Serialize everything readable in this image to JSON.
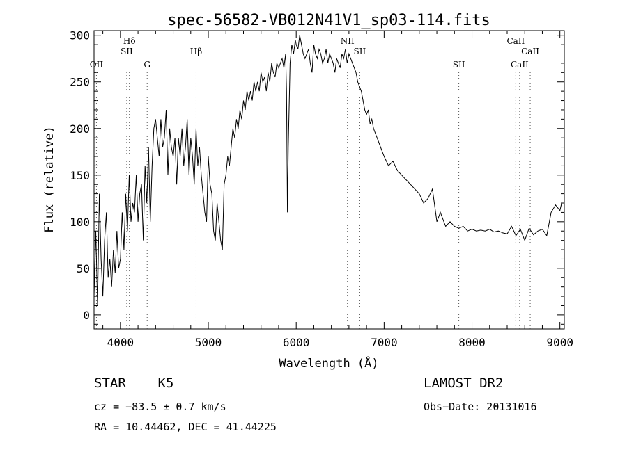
{
  "chart_data": {
    "type": "line",
    "title": "spec-56582-VB012N41V1_sp03-114.fits",
    "xlabel": "Wavelength (Å)",
    "ylabel": "Flux (relative)",
    "xlim": [
      3700,
      9050
    ],
    "ylim": [
      -15,
      305
    ],
    "x_ticks": [
      4000,
      5000,
      6000,
      7000,
      8000,
      9000
    ],
    "y_ticks": [
      0,
      50,
      100,
      150,
      200,
      250,
      300
    ],
    "grid": false,
    "series": [
      {
        "x": [
          3700,
          3720,
          3740,
          3760,
          3780,
          3800,
          3820,
          3840,
          3860,
          3880,
          3900,
          3920,
          3940,
          3960,
          3980,
          4000,
          4020,
          4040,
          4060,
          4080,
          4100,
          4120,
          4140,
          4160,
          4180,
          4200,
          4220,
          4240,
          4260,
          4280,
          4300,
          4320,
          4340,
          4360,
          4380,
          4400,
          4420,
          4440,
          4460,
          4480,
          4500,
          4520,
          4540,
          4560,
          4580,
          4600,
          4620,
          4640,
          4660,
          4680,
          4700,
          4720,
          4740,
          4760,
          4780,
          4800,
          4820,
          4840,
          4860,
          4880,
          4900,
          4920,
          4940,
          4960,
          4980,
          5000,
          5020,
          5040,
          5060,
          5080,
          5100,
          5120,
          5140,
          5160,
          5180,
          5200,
          5220,
          5240,
          5260,
          5280,
          5300,
          5320,
          5340,
          5360,
          5380,
          5400,
          5420,
          5440,
          5460,
          5480,
          5500,
          5520,
          5540,
          5560,
          5580,
          5600,
          5620,
          5640,
          5660,
          5680,
          5700,
          5720,
          5740,
          5760,
          5780,
          5800,
          5820,
          5840,
          5860,
          5880,
          5890,
          5900,
          5910,
          5930,
          5950,
          5970,
          5990,
          6000,
          6020,
          6040,
          6060,
          6080,
          6100,
          6120,
          6140,
          6160,
          6180,
          6200,
          6220,
          6240,
          6260,
          6280,
          6300,
          6320,
          6340,
          6360,
          6380,
          6400,
          6420,
          6440,
          6460,
          6480,
          6500,
          6520,
          6540,
          6560,
          6580,
          6600,
          6620,
          6640,
          6660,
          6680,
          6700,
          6720,
          6740,
          6760,
          6780,
          6800,
          6820,
          6840,
          6860,
          6880,
          6900,
          6920,
          6940,
          6960,
          6980,
          7000,
          7050,
          7100,
          7150,
          7200,
          7250,
          7300,
          7350,
          7400,
          7450,
          7500,
          7550,
          7600,
          7640,
          7660,
          7680,
          7700,
          7750,
          7800,
          7850,
          7900,
          7950,
          8000,
          8050,
          8100,
          8150,
          8200,
          8250,
          8300,
          8350,
          8400,
          8450,
          8500,
          8550,
          8600,
          8650,
          8700,
          8750,
          8800,
          8850,
          8900,
          8950,
          9000,
          9020
        ],
        "y": [
          20,
          90,
          10,
          130,
          60,
          20,
          80,
          110,
          40,
          60,
          30,
          70,
          45,
          90,
          50,
          60,
          110,
          70,
          130,
          90,
          150,
          100,
          120,
          110,
          150,
          100,
          130,
          140,
          80,
          160,
          120,
          180,
          100,
          160,
          200,
          210,
          190,
          170,
          210,
          180,
          190,
          220,
          150,
          200,
          180,
          170,
          190,
          140,
          190,
          170,
          200,
          160,
          180,
          210,
          150,
          190,
          170,
          140,
          200,
          160,
          180,
          150,
          130,
          110,
          100,
          170,
          140,
          130,
          90,
          80,
          120,
          100,
          80,
          70,
          140,
          150,
          170,
          160,
          180,
          200,
          190,
          210,
          200,
          220,
          210,
          230,
          220,
          240,
          230,
          240,
          230,
          250,
          240,
          250,
          240,
          260,
          250,
          255,
          240,
          260,
          250,
          270,
          260,
          255,
          270,
          265,
          270,
          275,
          265,
          280,
          240,
          110,
          180,
          270,
          290,
          280,
          295,
          290,
          285,
          300,
          290,
          280,
          275,
          280,
          285,
          270,
          260,
          290,
          280,
          275,
          285,
          280,
          270,
          275,
          285,
          270,
          280,
          275,
          270,
          260,
          275,
          270,
          265,
          280,
          275,
          285,
          270,
          280,
          275,
          270,
          265,
          260,
          250,
          245,
          240,
          230,
          220,
          215,
          220,
          205,
          210,
          200,
          195,
          190,
          185,
          180,
          175,
          170,
          160,
          165,
          155,
          150,
          145,
          140,
          135,
          130,
          120,
          125,
          135,
          100,
          110,
          105,
          100,
          95,
          100,
          95,
          93,
          95,
          90,
          92,
          90,
          91,
          90,
          92,
          89,
          90,
          88,
          87,
          95,
          85,
          92,
          80,
          93,
          86,
          90,
          92,
          85,
          110,
          118,
          112,
          120
        ]
      }
    ],
    "line_markers": [
      {
        "label": "OII",
        "x": 3727
      },
      {
        "label": "Hδ",
        "x": 4102
      },
      {
        "label": "SII",
        "x": 4072
      },
      {
        "label": "G",
        "x": 4304
      },
      {
        "label": "Hβ",
        "x": 4861
      },
      {
        "label": "NII",
        "x": 6583
      },
      {
        "label": "SII",
        "x": 6723
      },
      {
        "label": "SII",
        "x": 7850
      },
      {
        "label": "CaII",
        "x": 8498
      },
      {
        "label": "CaII",
        "x": 8542
      },
      {
        "label": "CaII",
        "x": 8662
      }
    ]
  },
  "info": {
    "class_label": "STAR",
    "subclass": "K5",
    "survey": "LAMOST DR2",
    "cz_text": "cz = −83.5 ± 0.7 km/s",
    "obs_date_text": "Obs−Date: 20131016",
    "radec_text": "RA =  10.44462, DEC =  41.44225"
  }
}
